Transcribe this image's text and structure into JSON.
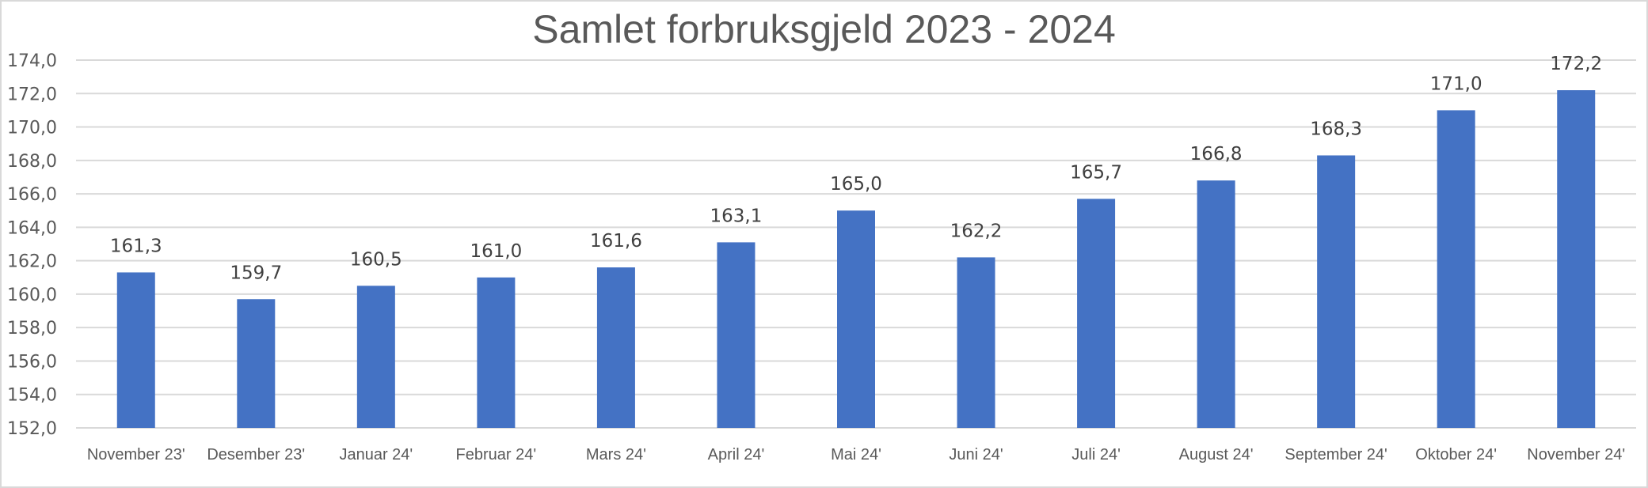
{
  "chart_data": {
    "type": "bar",
    "title": "Samlet forbruksgjeld 2023 - 2024",
    "xlabel": "",
    "ylabel": "",
    "ylim": [
      152,
      174
    ],
    "ytick_step": 2,
    "ytick_labels": [
      "152,0",
      "154,0",
      "156,0",
      "158,0",
      "160,0",
      "162,0",
      "164,0",
      "166,0",
      "168,0",
      "170,0",
      "172,0",
      "174,0"
    ],
    "grid": true,
    "legend": "none",
    "bar_color": "#4472C4",
    "categories": [
      "November 23'",
      "Desember 23'",
      "Januar 24'",
      "Februar 24'",
      "Mars 24'",
      "April 24'",
      "Mai 24'",
      "Juni 24'",
      "Juli 24'",
      "August 24'",
      "September 24'",
      "Oktober 24'",
      "November 24'"
    ],
    "values": [
      161.3,
      159.7,
      160.5,
      161.0,
      161.6,
      163.1,
      165.0,
      162.2,
      165.7,
      166.8,
      168.3,
      171.0,
      172.2
    ],
    "data_labels": [
      "161,3",
      "159,7",
      "160,5",
      "161,0",
      "161,6",
      "163,1",
      "165,0",
      "162,2",
      "165,7",
      "166,8",
      "168,3",
      "171,0",
      "172,2"
    ]
  }
}
